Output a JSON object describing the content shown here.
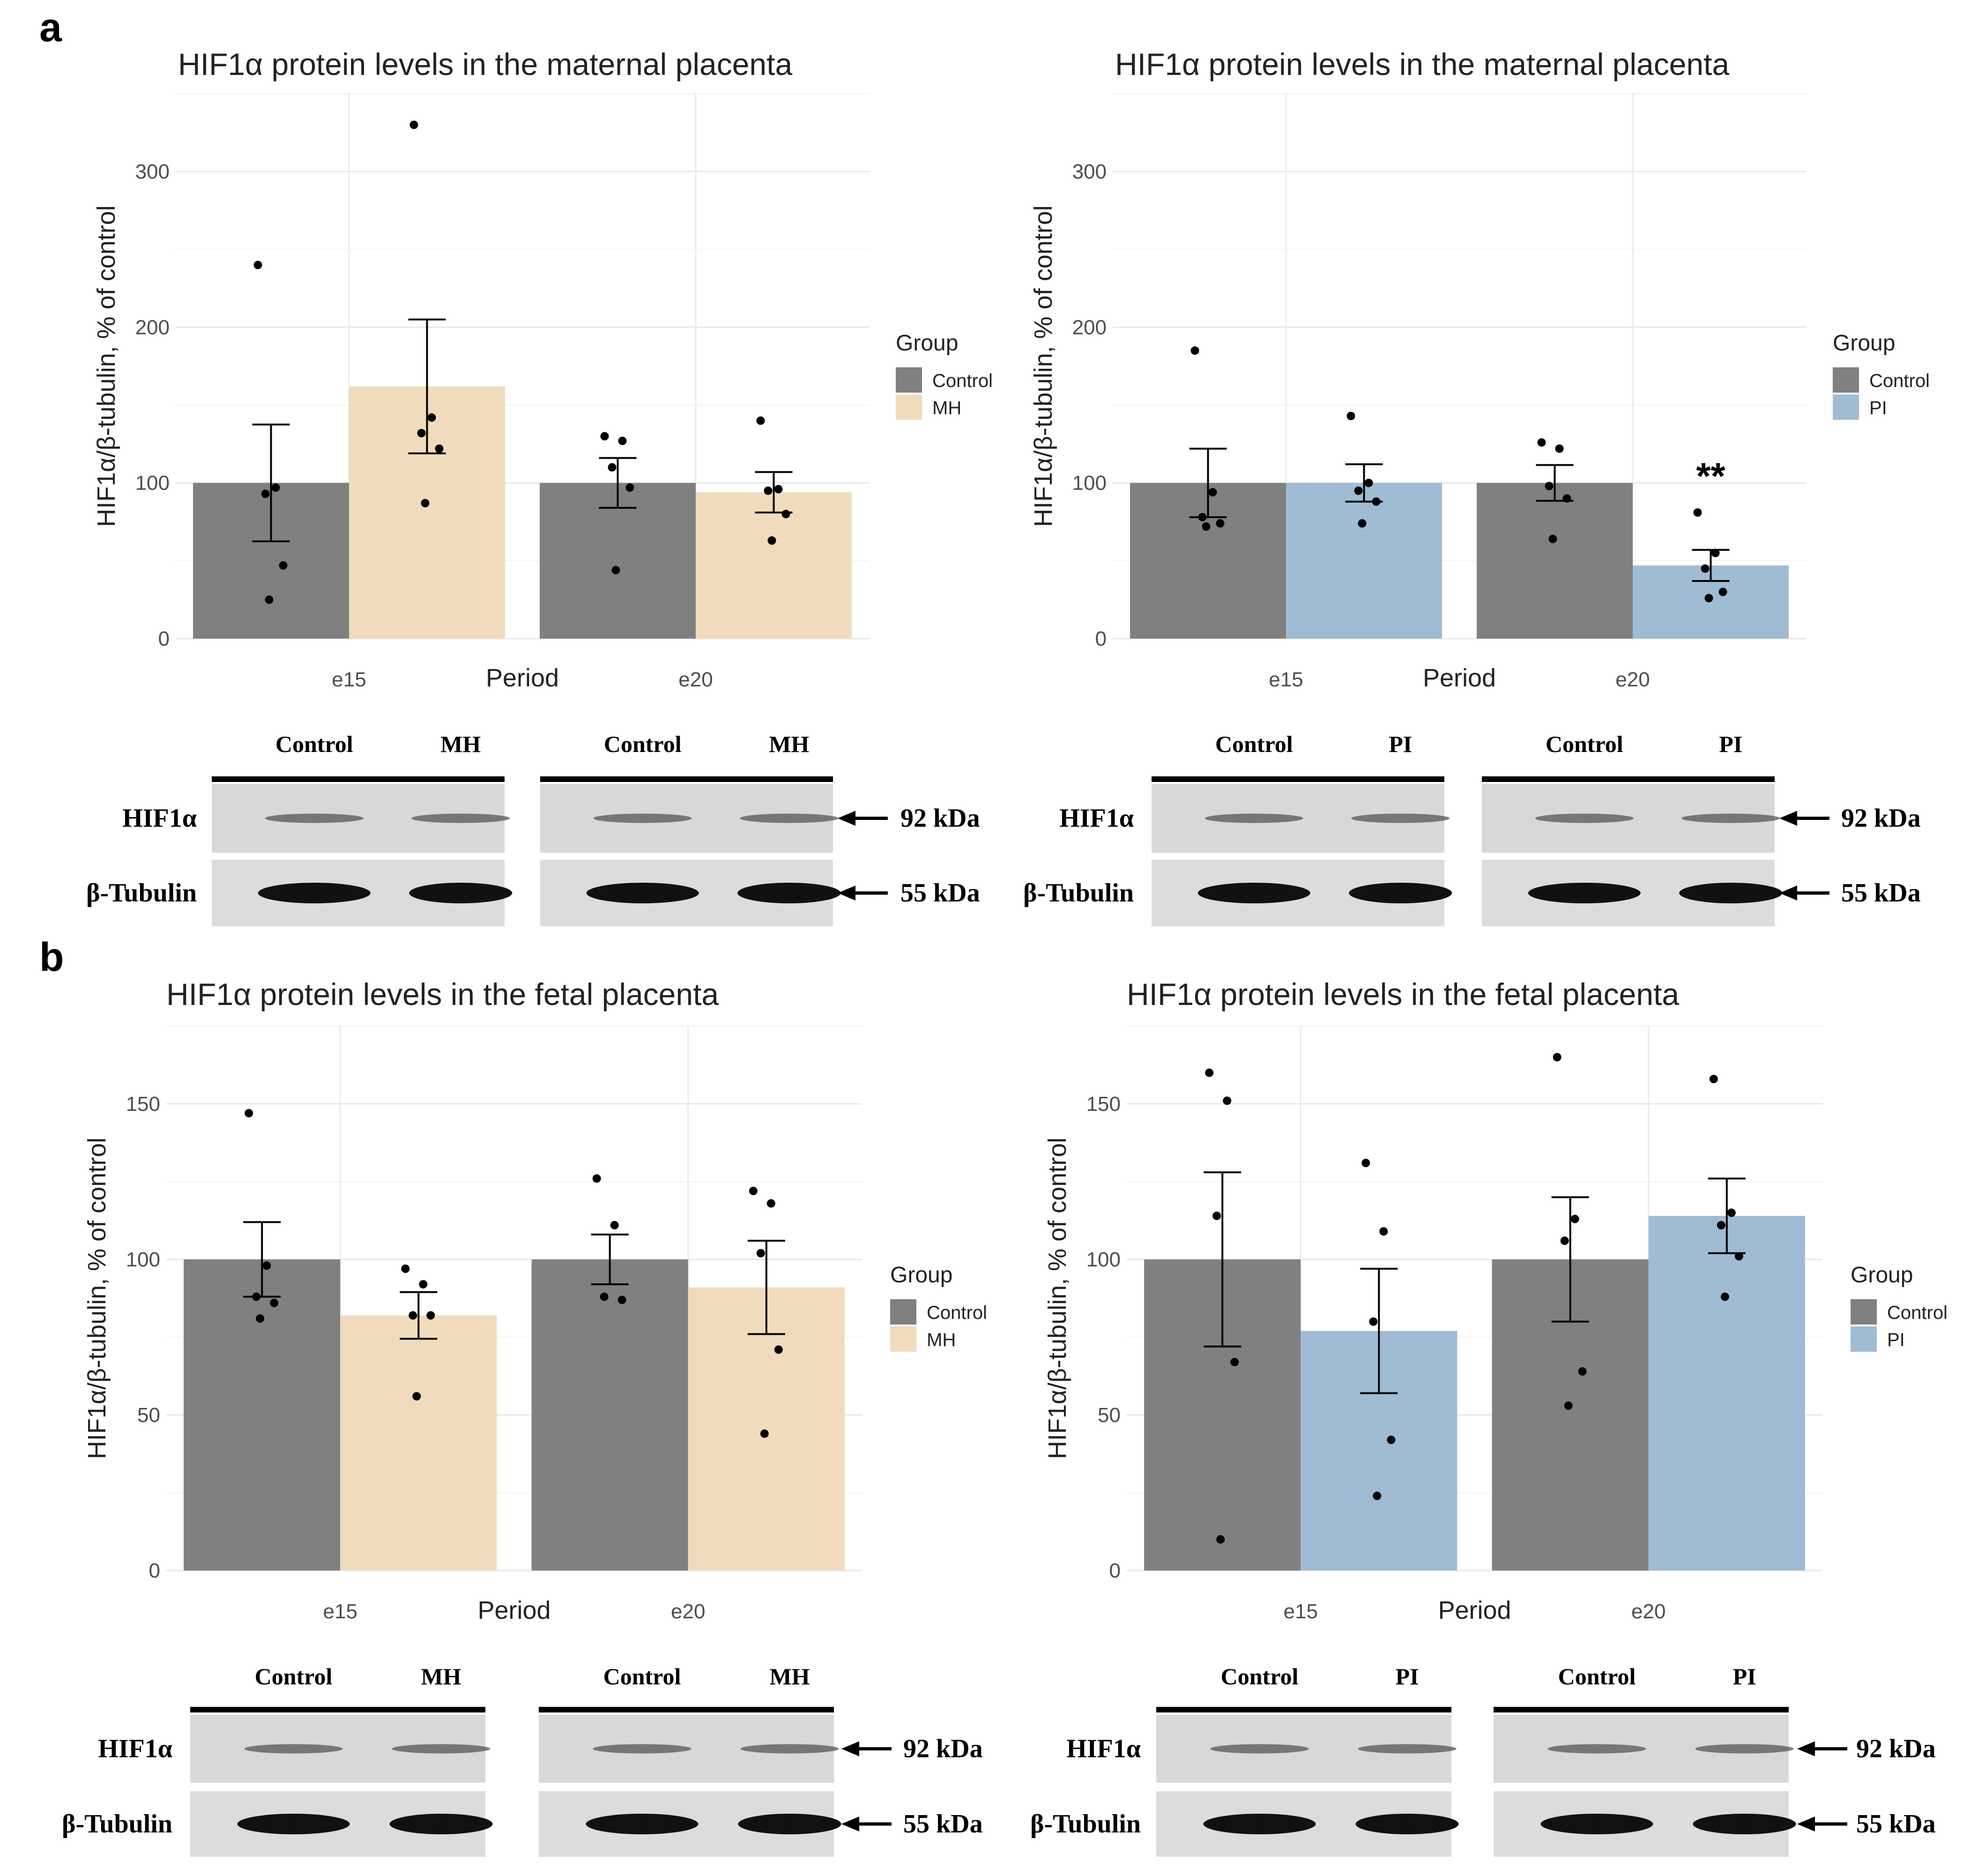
{
  "panel_labels": [
    "a",
    "b"
  ],
  "blot": {
    "hif_label": "HIF1α",
    "tub_label": "β-Tubulin",
    "hif_kda": "92 kDa",
    "tub_kda": "55 kDa"
  },
  "chart_data": [
    {
      "type": "bar",
      "panel": "a",
      "title": "HIF1α protein levels in the maternal placenta",
      "xlabel": "Period",
      "ylabel": "HIF1α/β-tubulin, % of control",
      "categories": [
        "e15",
        "e20"
      ],
      "ylim": [
        0,
        350
      ],
      "yticks": [
        0,
        100,
        200,
        300
      ],
      "grid": true,
      "legend_title": "Group",
      "legend_position": "right",
      "series": [
        {
          "name": "Control",
          "color": "#808080",
          "values": [
            100,
            100
          ],
          "se": [
            37.5,
            16
          ],
          "points": [
            [
              240,
              97,
              93,
              47,
              25
            ],
            [
              130,
              127,
              110,
              97,
              44
            ]
          ]
        },
        {
          "name": "MH",
          "color": "#f0dcbc",
          "values": [
            162,
            94
          ],
          "se": [
            43,
            13
          ],
          "points": [
            [
              330,
              142,
              132,
              122,
              87
            ],
            [
              140,
              96,
              95,
              80,
              63
            ]
          ]
        }
      ],
      "annotations": [],
      "blot_headers": [
        "Control",
        "MH",
        "Control",
        "MH"
      ]
    },
    {
      "type": "bar",
      "panel": "a",
      "title": "HIF1α protein levels in the maternal placenta",
      "xlabel": "Period",
      "ylabel": "HIF1α/β-tubulin, % of control",
      "categories": [
        "e15",
        "e20"
      ],
      "ylim": [
        0,
        350
      ],
      "yticks": [
        0,
        100,
        200,
        300
      ],
      "grid": true,
      "legend_title": "Group",
      "legend_position": "right",
      "series": [
        {
          "name": "Control",
          "color": "#808080",
          "values": [
            100,
            100
          ],
          "se": [
            22,
            11.5
          ],
          "points": [
            [
              185,
              94,
              78,
              74,
              72
            ],
            [
              126,
              122,
              98,
              90,
              64
            ]
          ]
        },
        {
          "name": "PI",
          "color": "#a0bcd4",
          "values": [
            100,
            47
          ],
          "se": [
            12,
            10
          ],
          "points": [
            [
              143,
              100,
              95,
              88,
              74
            ],
            [
              81,
              55,
              45,
              30,
              26
            ]
          ]
        }
      ],
      "annotations": [
        {
          "text": "**",
          "category": "e20",
          "series": "PI"
        }
      ],
      "blot_headers": [
        "Control",
        "PI",
        "Control",
        "PI"
      ]
    },
    {
      "type": "bar",
      "panel": "b",
      "title": "HIF1α protein levels in the fetal placenta",
      "xlabel": "Period",
      "ylabel": "HIF1α/β-tubulin, % of control",
      "categories": [
        "e15",
        "e20"
      ],
      "ylim": [
        0,
        175
      ],
      "yticks": [
        0,
        50,
        100,
        150
      ],
      "grid": true,
      "legend_title": "Group",
      "legend_position": "right",
      "series": [
        {
          "name": "Control",
          "color": "#808080",
          "values": [
            100,
            100
          ],
          "se": [
            12,
            8
          ],
          "points": [
            [
              147,
              98,
              88,
              86,
              81
            ],
            [
              126,
              111,
              88,
              87
            ]
          ]
        },
        {
          "name": "MH",
          "color": "#f0dcbc",
          "values": [
            82,
            91
          ],
          "se": [
            7.5,
            15
          ],
          "points": [
            [
              97,
              92,
              82,
              82,
              56
            ],
            [
              122,
              118,
              102,
              71,
              44
            ]
          ]
        }
      ],
      "annotations": [],
      "blot_headers": [
        "Control",
        "MH",
        "Control",
        "MH"
      ]
    },
    {
      "type": "bar",
      "panel": "b",
      "title": "HIF1α protein levels in the fetal placenta",
      "xlabel": "Period",
      "ylabel": "HIF1α/β-tubulin, % of control",
      "categories": [
        "e15",
        "e20"
      ],
      "ylim": [
        0,
        175
      ],
      "yticks": [
        0,
        50,
        100,
        150
      ],
      "grid": true,
      "legend_title": "Group",
      "legend_position": "right",
      "series": [
        {
          "name": "Control",
          "color": "#808080",
          "values": [
            100,
            100
          ],
          "se": [
            28,
            20
          ],
          "points": [
            [
              160,
              151,
              114,
              67,
              10
            ],
            [
              165,
              113,
              106,
              64,
              53
            ]
          ]
        },
        {
          "name": "PI",
          "color": "#a0bcd4",
          "values": [
            77,
            114
          ],
          "se": [
            20,
            12
          ],
          "points": [
            [
              131,
              109,
              80,
              42,
              24
            ],
            [
              158,
              115,
              111,
              101,
              88
            ]
          ]
        }
      ],
      "annotations": [],
      "blot_headers": [
        "Control",
        "PI",
        "Control",
        "PI"
      ]
    }
  ]
}
